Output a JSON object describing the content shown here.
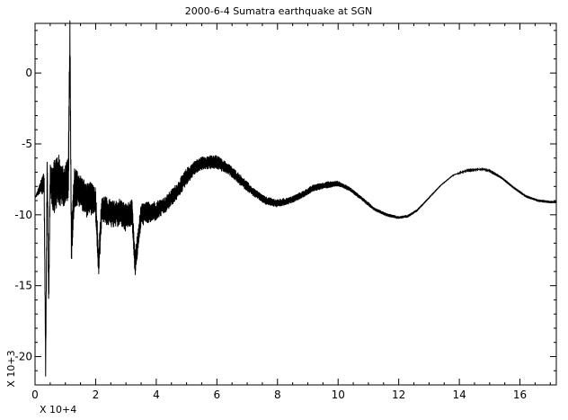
{
  "chart_data": {
    "type": "line",
    "title": "2000-6-4 Sumatra earthquake at SGN",
    "xlabel": "",
    "ylabel": "",
    "x_multiplier_label": "X 10+4",
    "y_multiplier_label": "X 10+3",
    "xlim": [
      0,
      17.2
    ],
    "ylim": [
      -22,
      3.5
    ],
    "x_ticks": [
      0,
      2,
      4,
      6,
      8,
      10,
      12,
      14,
      16
    ],
    "y_ticks": [
      0,
      -5,
      -10,
      -15,
      -20
    ],
    "grid": false,
    "line_color": "#000000",
    "series": [
      {
        "x": [
          0,
          0.2,
          0.3,
          0.35,
          0.4,
          0.45,
          0.5,
          0.6,
          0.75,
          0.9,
          1.0,
          1.1,
          1.15,
          1.2,
          1.3,
          1.5,
          1.7,
          1.9,
          2.0,
          2.1,
          2.2,
          2.4,
          2.6,
          2.8,
          3.0,
          3.2,
          3.3,
          3.5,
          3.8,
          4.0,
          4.3,
          4.7,
          5.0,
          5.3,
          5.6,
          6.0,
          6.4,
          6.8,
          7.2,
          7.6,
          8.0,
          8.4,
          8.8,
          9.2,
          9.6,
          10.0,
          10.4,
          10.8,
          11.2,
          11.6,
          12.0,
          12.3,
          12.6,
          13.0,
          13.4,
          13.8,
          14.2,
          14.6,
          14.8,
          15.0,
          15.4,
          15.8,
          16.2,
          16.6,
          17.0,
          17.2
        ],
        "y": [
          -8.8,
          -8.0,
          -7.8,
          -21.0,
          -6.0,
          -16.0,
          -7.5,
          -8.0,
          -7.5,
          -8.0,
          -7.8,
          -7.5,
          2.5,
          -12.0,
          -8.0,
          -8.3,
          -9.0,
          -8.8,
          -9.2,
          -13.5,
          -9.5,
          -9.8,
          -10.0,
          -9.8,
          -10.2,
          -9.8,
          -13.5,
          -10.0,
          -9.8,
          -9.7,
          -9.3,
          -8.3,
          -7.3,
          -6.6,
          -6.3,
          -6.3,
          -6.8,
          -7.6,
          -8.4,
          -9.0,
          -9.2,
          -9.0,
          -8.6,
          -8.1,
          -7.9,
          -7.8,
          -8.2,
          -8.9,
          -9.6,
          -10.0,
          -10.2,
          -10.1,
          -9.7,
          -8.8,
          -7.9,
          -7.2,
          -6.9,
          -6.8,
          -6.8,
          -6.9,
          -7.4,
          -8.1,
          -8.7,
          -9.0,
          -9.1,
          -9.1
        ],
        "noise_amplitude": [
          0,
          0.5,
          1,
          1,
          1,
          1,
          1,
          2,
          2,
          1.5,
          1.5,
          2,
          2,
          1.5,
          1.5,
          1.2,
          1.2,
          1.2,
          1.2,
          1.2,
          1.0,
          1.0,
          1.0,
          1.0,
          1.0,
          0.9,
          0.9,
          0.8,
          0.8,
          0.7,
          0.6,
          0.6,
          0.6,
          0.5,
          0.5,
          0.5,
          0.4,
          0.4,
          0.3,
          0.3,
          0.3,
          0.25,
          0.25,
          0.25,
          0.25,
          0.2,
          0.15,
          0.15,
          0.12,
          0.12,
          0.1,
          0.1,
          0.08,
          0.06,
          0.05,
          0.04,
          0.03,
          0.03,
          0.03,
          0.03,
          0.02,
          0.02,
          0.02,
          0.02,
          0.02,
          0.02
        ]
      }
    ]
  }
}
